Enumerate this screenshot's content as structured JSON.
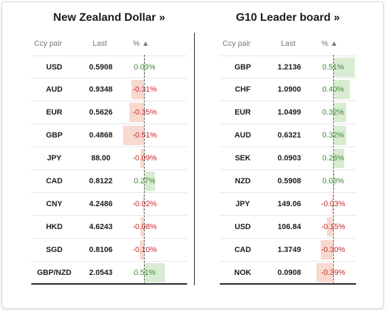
{
  "nzd": {
    "title": "New Zealand Dollar »",
    "headers": {
      "pair": "Ccy pair",
      "last": "Last",
      "pct": "% ▲"
    },
    "rows": [
      {
        "pair": "USD",
        "last": "0.5908",
        "pct": "0.03%",
        "value": 0.03
      },
      {
        "pair": "AUD",
        "last": "0.9348",
        "pct": "-0.31%",
        "value": -0.31
      },
      {
        "pair": "EUR",
        "last": "0.5626",
        "pct": "-0.35%",
        "value": -0.35
      },
      {
        "pair": "GBP",
        "last": "0.4868",
        "pct": "-0.51%",
        "value": -0.51
      },
      {
        "pair": "JPY",
        "last": "88.00",
        "pct": "-0.09%",
        "value": -0.09
      },
      {
        "pair": "CAD",
        "last": "0.8122",
        "pct": "0.27%",
        "value": 0.27
      },
      {
        "pair": "CNY",
        "last": "4.2486",
        "pct": "-0.02%",
        "value": -0.02
      },
      {
        "pair": "HKD",
        "last": "4.6243",
        "pct": "-0.08%",
        "value": -0.08
      },
      {
        "pair": "SGD",
        "last": "0.8106",
        "pct": "-0.10%",
        "value": -0.1
      },
      {
        "pair": "GBP/NZD",
        "last": "2.0543",
        "pct": "0.51%",
        "value": 0.51
      }
    ]
  },
  "g10": {
    "title": "G10 Leader board »",
    "headers": {
      "pair": "Ccy pair",
      "last": "Last",
      "pct": "% ▲"
    },
    "rows": [
      {
        "pair": "GBP",
        "last": "1.2136",
        "pct": "0.51%",
        "value": 0.51
      },
      {
        "pair": "CHF",
        "last": "1.0900",
        "pct": "0.40%",
        "value": 0.4
      },
      {
        "pair": "EUR",
        "last": "1.0499",
        "pct": "0.32%",
        "value": 0.32
      },
      {
        "pair": "AUD",
        "last": "0.6321",
        "pct": "0.32%",
        "value": 0.32
      },
      {
        "pair": "SEK",
        "last": "0.0903",
        "pct": "0.26%",
        "value": 0.26
      },
      {
        "pair": "NZD",
        "last": "0.5908",
        "pct": "0.03%",
        "value": 0.03
      },
      {
        "pair": "JPY",
        "last": "149.06",
        "pct": "-0.03%",
        "value": -0.03
      },
      {
        "pair": "USD",
        "last": "106.84",
        "pct": "-0.15%",
        "value": -0.15
      },
      {
        "pair": "CAD",
        "last": "1.3749",
        "pct": "-0.30%",
        "value": -0.3
      },
      {
        "pair": "NOK",
        "last": "0.0908",
        "pct": "-0.39%",
        "value": -0.39
      }
    ]
  },
  "colors": {
    "positive": "#3a8a2e",
    "negative": "#c62828",
    "positive_bar": "#d8ecd2",
    "negative_bar": "#f8d9cf"
  }
}
